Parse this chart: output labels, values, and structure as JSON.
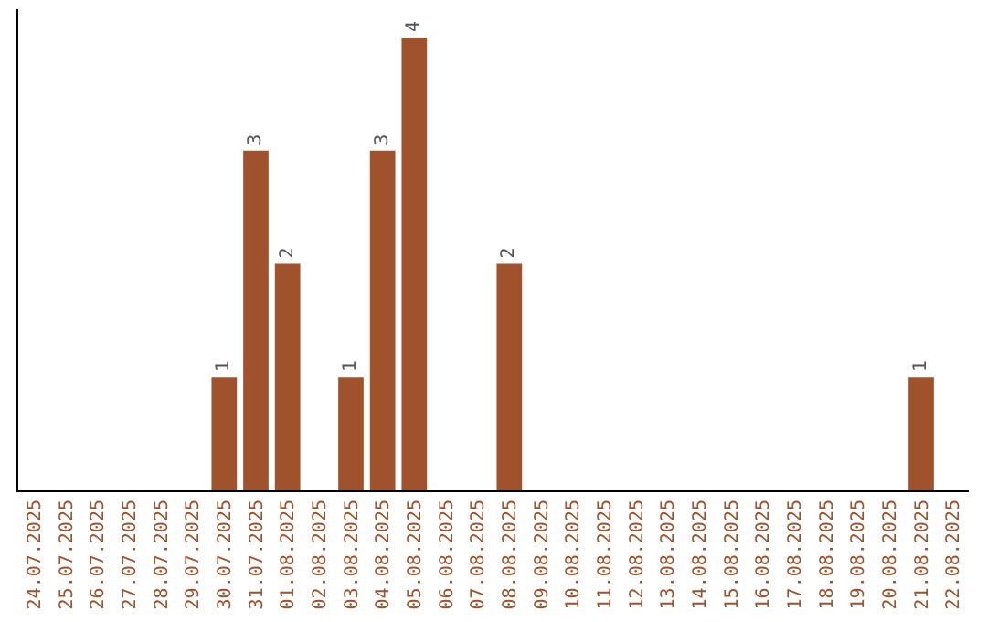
{
  "chart_data": {
    "type": "bar",
    "categories": [
      "24.07.2025",
      "25.07.2025",
      "26.07.2025",
      "27.07.2025",
      "28.07.2025",
      "29.07.2025",
      "30.07.2025",
      "31.07.2025",
      "01.08.2025",
      "02.08.2025",
      "03.08.2025",
      "04.08.2025",
      "05.08.2025",
      "06.08.2025",
      "07.08.2025",
      "08.08.2025",
      "09.08.2025",
      "10.08.2025",
      "11.08.2025",
      "12.08.2025",
      "13.08.2025",
      "14.08.2025",
      "15.08.2025",
      "16.08.2025",
      "17.08.2025",
      "18.08.2025",
      "19.08.2025",
      "20.08.2025",
      "21.08.2025",
      "22.08.2025"
    ],
    "values": [
      0,
      0,
      0,
      0,
      0,
      0,
      1,
      3,
      2,
      0,
      1,
      3,
      4,
      0,
      0,
      2,
      0,
      0,
      0,
      0,
      0,
      0,
      0,
      0,
      0,
      0,
      0,
      0,
      1,
      0
    ],
    "value_labels": [
      null,
      null,
      null,
      null,
      null,
      null,
      "1",
      "3",
      "2",
      null,
      "1",
      "3",
      "4",
      null,
      null,
      "2",
      null,
      null,
      null,
      null,
      null,
      null,
      null,
      null,
      null,
      null,
      null,
      null,
      "1",
      null
    ],
    "color": "#a0522d",
    "ylim": [
      0,
      4.25
    ],
    "tick_labels": "x",
    "legend": false
  }
}
